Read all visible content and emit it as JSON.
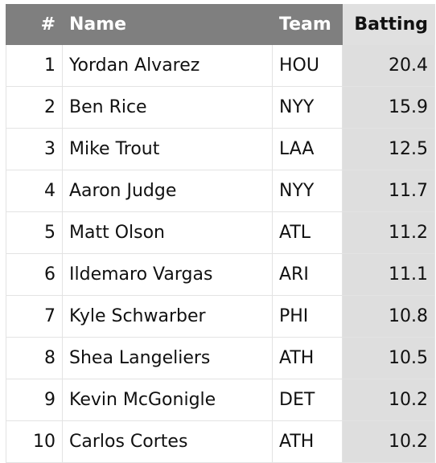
{
  "table": {
    "headers": [
      "#",
      "Name",
      "Team",
      "Batting"
    ],
    "rows": [
      [
        1,
        "Yordan Alvarez",
        "HOU",
        20.4
      ],
      [
        2,
        "Ben Rice",
        "NYY",
        15.9
      ],
      [
        3,
        "Mike Trout",
        "LAA",
        12.5
      ],
      [
        4,
        "Aaron Judge",
        "NYY",
        11.7
      ],
      [
        5,
        "Matt Olson",
        "ATL",
        11.2
      ],
      [
        6,
        "Ildemaro Vargas",
        "ARI",
        11.1
      ],
      [
        7,
        "Kyle Schwarber",
        "PHI",
        10.8
      ],
      [
        8,
        "Shea Langeliers",
        "ATH",
        10.5
      ],
      [
        9,
        "Kevin McGonigle",
        "DET",
        10.2
      ],
      [
        10,
        "Carlos Cortes",
        "ATH",
        10.2
      ]
    ]
  }
}
